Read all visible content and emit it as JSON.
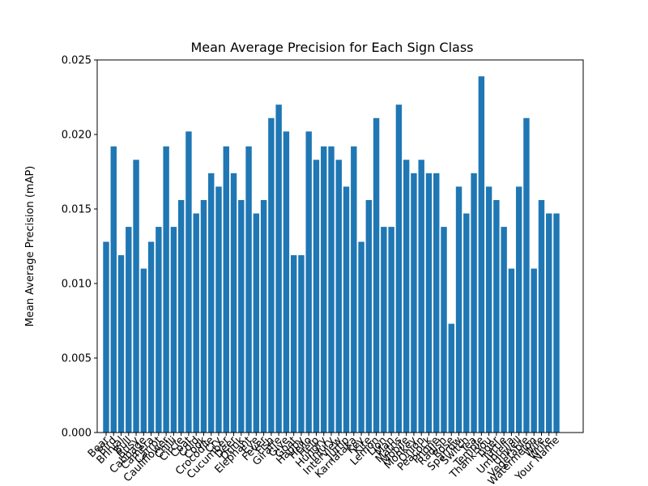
{
  "chart_data": {
    "type": "bar",
    "title": "Mean Average Precision for Each Sign Class",
    "ylabel": "Mean Average Precision (mAP)",
    "color": "#1f77b4",
    "categories": [
      "Bear",
      "Bird",
      "Brinjal",
      "Bull",
      "Busy",
      "Cabbage",
      "Camera",
      "Carrot",
      "Cauliflower",
      "Chilli",
      "Circle",
      "Coat",
      "Cold",
      "Cook",
      "Crocodile",
      "Cry",
      "Cucumber",
      "Deer",
      "Drink",
      "Elephant",
      "Eye",
      "Fever",
      "Fish",
      "Giraffe",
      "Give",
      "Goat",
      "Happy",
      "Hello",
      "Help",
      "Hungry",
      "Injury",
      "Interview",
      "Jump",
      "Karnataka",
      "Key",
      "Kite",
      "Lemon",
      "Lion",
      "Man",
      "Maths",
      "Mobile",
      "Monkey",
      "Onion",
      "Peacock",
      "Phone",
      "Radish",
      "Rose",
      "Sparrow",
      "Switch",
      "Tea",
      "Temple",
      "Thank You",
      "Tiger",
      "Turtle",
      "Umbrella",
      "Unwell",
      "Vegetable",
      "Watermelon",
      "Wife",
      "Write",
      "Your Name"
    ],
    "values": [
      0.0128,
      0.0192,
      0.0119,
      0.0138,
      0.0183,
      0.011,
      0.0128,
      0.0138,
      0.0192,
      0.0138,
      0.0156,
      0.0202,
      0.0147,
      0.0156,
      0.0174,
      0.0165,
      0.0192,
      0.0174,
      0.0156,
      0.0192,
      0.0147,
      0.0156,
      0.0211,
      0.022,
      0.0202,
      0.0119,
      0.0119,
      0.0202,
      0.0183,
      0.0192,
      0.0192,
      0.0183,
      0.0165,
      0.0192,
      0.0128,
      0.0156,
      0.0211,
      0.0138,
      0.0138,
      0.022,
      0.0183,
      0.0174,
      0.0183,
      0.0174,
      0.0174,
      0.0138,
      0.0073,
      0.0165,
      0.0147,
      0.0174,
      0.0239,
      0.0165,
      0.0156,
      0.0138,
      0.011,
      0.0165,
      0.0211,
      0.011,
      0.0156,
      0.0147,
      0.0147
    ],
    "ylim": [
      0,
      0.025
    ],
    "yticks": [
      {
        "value": 0,
        "label": "0.000"
      },
      {
        "value": 0.005,
        "label": "0.005"
      },
      {
        "value": 0.01,
        "label": "0.010"
      },
      {
        "value": 0.015,
        "label": "0.015"
      },
      {
        "value": 0.02,
        "label": "0.020"
      },
      {
        "value": 0.025,
        "label": "0.025"
      }
    ],
    "grid": false
  }
}
